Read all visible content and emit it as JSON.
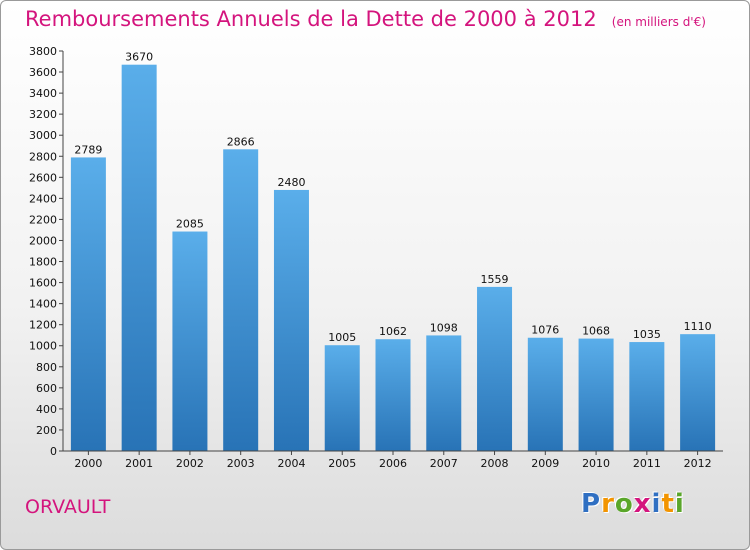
{
  "title": "Remboursements Annuels de la Dette de 2000 à 2012",
  "subtitle": "(en milliers d'€)",
  "city": "ORVAULT",
  "logo": {
    "letters": [
      "P",
      "r",
      "o",
      "x",
      "i",
      "t",
      "i"
    ],
    "colors": [
      "#2f6fc2",
      "#f29400",
      "#5aa62a",
      "#d4147d",
      "#2f6fc2",
      "#f29400",
      "#5aa62a"
    ]
  },
  "colors": {
    "bar_top": "#5aaeea",
    "bar_bottom": "#2873b6",
    "title": "#d4147d"
  },
  "chart_data": {
    "type": "bar",
    "categories": [
      "2000",
      "2001",
      "2002",
      "2003",
      "2004",
      "2005",
      "2006",
      "2007",
      "2008",
      "2009",
      "2010",
      "2011",
      "2012"
    ],
    "values": [
      2789,
      3670,
      2085,
      2866,
      2480,
      1005,
      1062,
      1098,
      1559,
      1076,
      1068,
      1035,
      1110
    ],
    "data_labels": [
      "2789",
      "3670",
      "2085",
      "2866",
      "2480",
      "1005",
      "1062",
      "1098",
      "1559",
      "1076",
      "1068",
      "1035",
      "1110"
    ],
    "title": "Remboursements Annuels de la Dette de 2000 à 2012",
    "ylim": [
      0,
      3800
    ],
    "yticks": [
      0,
      200,
      400,
      600,
      800,
      1000,
      1200,
      1400,
      1600,
      1800,
      2000,
      2200,
      2400,
      2600,
      2800,
      3000,
      3200,
      3400,
      3600,
      3800
    ],
    "grid": false,
    "xlabel": "",
    "ylabel": ""
  }
}
